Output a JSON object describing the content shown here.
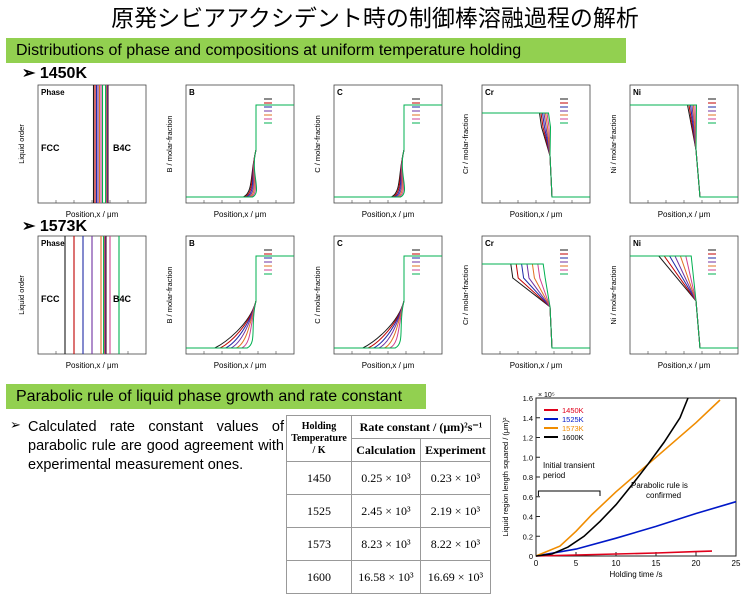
{
  "slide": {
    "title": "原発シビアアクシデント時の制御棒溶融過程の解析",
    "section1": "Distributions of phase and compositions at uniform temperature holding",
    "section2": "Parabolic rule of liquid phase growth and rate constant",
    "temp1": "1450K",
    "temp2": "1573K",
    "bullet_symbol": "➢",
    "bullet_text": "Calculated rate constant values of parabolic rule are good agreement with experimental measurement ones."
  },
  "panels": {
    "xlabel": "Position,x / μm",
    "titles": [
      "Phase",
      "B",
      "C",
      "Cr",
      "Ni"
    ],
    "ylabels": [
      "Liquid order",
      "B / molar-fraction",
      "C / molar-fraction",
      "Cr / molar-fraction",
      "Ni / molar-fraction"
    ],
    "phase_labels": {
      "fcc": "FCC",
      "b4c": "B4C"
    },
    "line_colors": [
      "#1a1a1a",
      "#c00000",
      "#1f2aa6",
      "#7030a0",
      "#e07020",
      "#d04090",
      "#00b050"
    ]
  },
  "table": {
    "headers": [
      "Holding Temperature / K",
      "Rate constant / (μm)²s⁻¹",
      "Calculation",
      "Experiment"
    ],
    "rows": [
      [
        "1450",
        "0.25 × 10³",
        "0.23 × 10³"
      ],
      [
        "1525",
        "2.45 × 10³",
        "2.19 × 10³"
      ],
      [
        "1573",
        "8.23 × 10³",
        "8.22 × 10³"
      ],
      [
        "1600",
        "16.58 × 10³",
        "16.69 × 10³"
      ]
    ]
  },
  "chart_data": {
    "type": "line",
    "ylabel": "Liquid region length squared / (μm)²",
    "xlabel": "Holding time /s",
    "y_multiplier": "× 10⁵",
    "xlim": [
      0,
      25
    ],
    "ylim": [
      0,
      1.6
    ],
    "xticks": [
      0,
      5,
      10,
      15,
      20,
      25
    ],
    "yticks": [
      0,
      0.2,
      0.4,
      0.6,
      0.8,
      1.0,
      1.2,
      1.4,
      1.6
    ],
    "legend_position": "top-left",
    "series": [
      {
        "name": "1450K",
        "color": "#e0001b",
        "x": [
          0,
          5,
          10,
          15,
          20,
          22
        ],
        "y": [
          0,
          0.01,
          0.02,
          0.03,
          0.045,
          0.05
        ]
      },
      {
        "name": "1525K",
        "color": "#0018c8",
        "x": [
          0,
          5,
          10,
          15,
          20,
          25
        ],
        "y": [
          0,
          0.07,
          0.18,
          0.3,
          0.43,
          0.55
        ]
      },
      {
        "name": "1573K",
        "color": "#f08c00",
        "x": [
          0,
          3,
          5,
          7,
          10,
          15,
          20,
          23
        ],
        "y": [
          0,
          0.1,
          0.25,
          0.42,
          0.65,
          1.0,
          1.35,
          1.58
        ]
      },
      {
        "name": "1600K",
        "color": "#000000",
        "x": [
          0,
          2,
          4,
          6,
          8,
          10,
          12,
          14,
          16,
          18,
          19
        ],
        "y": [
          0,
          0.02,
          0.09,
          0.2,
          0.35,
          0.52,
          0.72,
          0.93,
          1.15,
          1.4,
          1.6
        ]
      }
    ],
    "annotations": [
      "Initial transient period",
      "Parabolic rule is confirmed"
    ]
  }
}
